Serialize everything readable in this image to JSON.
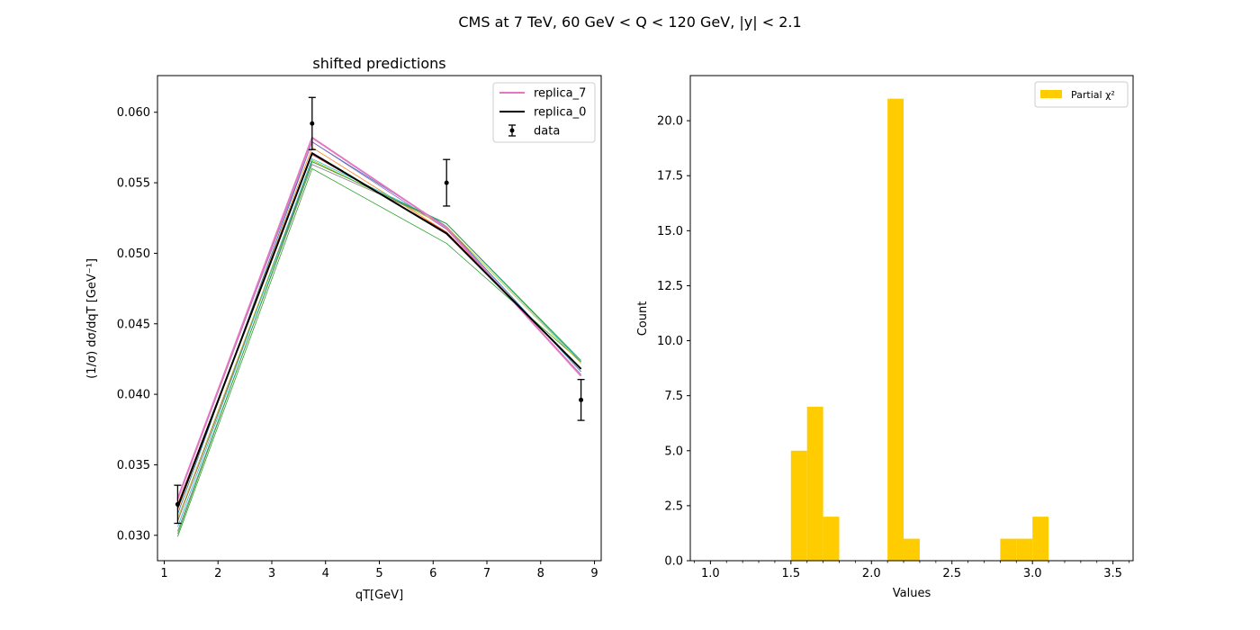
{
  "figure": {
    "suptitle": "CMS at 7 TeV, 60 GeV < Q < 120 GeV, |y| < 2.1"
  },
  "chart_data": [
    {
      "type": "line",
      "title": "shifted predictions",
      "xlabel": "qT[GeV]",
      "ylabel": "(1/σ) dσ/dqT [GeV⁻¹]",
      "xlim": [
        0.875,
        9.125
      ],
      "ylim": [
        0.0282,
        0.0626
      ],
      "xticks": [
        1,
        2,
        3,
        4,
        5,
        6,
        7,
        8,
        9
      ],
      "yticks": [
        0.03,
        0.035,
        0.04,
        0.045,
        0.05,
        0.055,
        0.06
      ],
      "ytick_labels": [
        "0.030",
        "0.035",
        "0.040",
        "0.045",
        "0.050",
        "0.055",
        "0.060"
      ],
      "x": [
        1.25,
        3.75,
        6.25,
        8.75
      ],
      "data": {
        "name": "data",
        "y": [
          0.0322,
          0.0592,
          0.055,
          0.0396
        ],
        "yerr": [
          0.00135,
          0.00185,
          0.00165,
          0.00145
        ],
        "color": "#000000"
      },
      "series": [
        {
          "name": "",
          "values": [
            0.0315,
            0.0579,
            0.0519,
            0.0416
          ],
          "color": "#1f77b4",
          "width": 0.8
        },
        {
          "name": "",
          "values": [
            0.0318,
            0.0575,
            0.0515,
            0.0418
          ],
          "color": "#ff7f0e",
          "width": 0.8
        },
        {
          "name": "",
          "values": [
            0.0299,
            0.056,
            0.0507,
            0.0423
          ],
          "color": "#2ca02c",
          "width": 0.8
        },
        {
          "name": "",
          "values": [
            0.0322,
            0.057,
            0.0515,
            0.0418
          ],
          "color": "#d62728",
          "width": 0.8
        },
        {
          "name": "",
          "values": [
            0.0325,
            0.0579,
            0.0517,
            0.0414
          ],
          "color": "#9467bd",
          "width": 0.8
        },
        {
          "name": "",
          "values": [
            0.031,
            0.0565,
            0.0521,
            0.0423
          ],
          "color": "#8c564b",
          "width": 0.8
        },
        {
          "name": "",
          "values": [
            0.0312,
            0.0566,
            0.0519,
            0.0422
          ],
          "color": "#bcbd22",
          "width": 0.8
        },
        {
          "name": "",
          "values": [
            0.0303,
            0.0563,
            0.0521,
            0.0423
          ],
          "color": "#7f7f7f",
          "width": 0.8
        },
        {
          "name": "",
          "values": [
            0.0306,
            0.0567,
            0.0521,
            0.0423
          ],
          "color": "#17becf",
          "width": 0.8
        },
        {
          "name": "",
          "values": [
            0.0301,
            0.0565,
            0.0521,
            0.0424
          ],
          "color": "#2ca02c",
          "width": 0.8
        },
        {
          "name": "replica_7",
          "values": [
            0.0326,
            0.0582,
            0.0518,
            0.0413
          ],
          "color": "#e377c2",
          "width": 2
        },
        {
          "name": "replica_0",
          "values": [
            0.032,
            0.0571,
            0.0514,
            0.0418
          ],
          "color": "#000000",
          "width": 2
        }
      ],
      "legend": {
        "position": "top-right",
        "entries": [
          {
            "label": "replica_7",
            "kind": "line",
            "color": "#e377c2"
          },
          {
            "label": "replica_0",
            "kind": "line",
            "color": "#000000"
          },
          {
            "label": "data",
            "kind": "errorbar",
            "color": "#000000"
          }
        ]
      },
      "grid": false
    },
    {
      "type": "bar",
      "title": "",
      "xlabel": "Values",
      "ylabel": "Count",
      "xlim": [
        0.875,
        3.625
      ],
      "ylim": [
        0,
        22.05
      ],
      "xticks": [
        1.0,
        1.5,
        2.0,
        2.5,
        3.0,
        3.5
      ],
      "xtick_labels": [
        "1.0",
        "1.5",
        "2.0",
        "2.5",
        "3.0",
        "3.5"
      ],
      "yticks": [
        0,
        2.5,
        5,
        7.5,
        10,
        12.5,
        15,
        17.5,
        20
      ],
      "ytick_labels": [
        "0.0",
        "2.5",
        "5.0",
        "7.5",
        "10.0",
        "12.5",
        "15.0",
        "17.5",
        "20.0"
      ],
      "bin_width": 0.1,
      "bins": [
        {
          "x0": 1.5,
          "count": 5
        },
        {
          "x0": 1.6,
          "count": 7
        },
        {
          "x0": 1.7,
          "count": 2
        },
        {
          "x0": 2.1,
          "count": 21
        },
        {
          "x0": 2.2,
          "count": 1
        },
        {
          "x0": 2.8,
          "count": 1
        },
        {
          "x0": 2.9,
          "count": 1
        },
        {
          "x0": 3.0,
          "count": 2
        }
      ],
      "color": "#ffcc00",
      "legend": {
        "position": "top-right",
        "entries": [
          {
            "label": "Partial χ²",
            "kind": "patch",
            "color": "#ffcc00"
          }
        ]
      },
      "grid": false
    }
  ]
}
